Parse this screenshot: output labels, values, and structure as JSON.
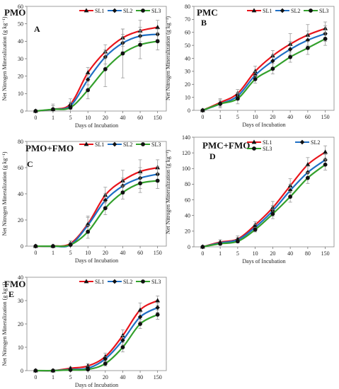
{
  "colors": {
    "SL1": "#e8141b",
    "SL2": "#1f6fc4",
    "SL3": "#33a02c",
    "error_bar": "#9a9a9a",
    "axis": "#555555"
  },
  "chart_data": [
    {
      "type": "line",
      "title": "PMO",
      "letter": "A",
      "xlabel": "Days of Incubation",
      "ylabel": "Net Nitrogen Mineralization (g kg⁻¹)",
      "categories": [
        "0",
        "1",
        "5",
        "10",
        "20",
        "40",
        "60",
        "150"
      ],
      "ylim": [
        0,
        60
      ],
      "yticks": [
        0,
        10,
        20,
        30,
        40,
        50,
        60
      ],
      "legend": "top-right",
      "grid": false,
      "error_bars": true,
      "series": [
        {
          "name": "SL1",
          "values": [
            0,
            1,
            4,
            22,
            34,
            42,
            46,
            48
          ]
        },
        {
          "name": "SL2",
          "values": [
            0,
            1,
            3,
            18,
            31,
            39,
            43,
            44
          ]
        },
        {
          "name": "SL3",
          "values": [
            0,
            1,
            2,
            12,
            24,
            33,
            38,
            40
          ]
        }
      ]
    },
    {
      "type": "line",
      "title": "PMC",
      "letter": "B",
      "xlabel": "Days of Incubation",
      "ylabel": "Net Nitrogen Mineralization (g kg⁻¹)",
      "categories": [
        "0",
        "1",
        "5",
        "10",
        "20",
        "40",
        "60",
        "150"
      ],
      "ylim": [
        0,
        80
      ],
      "yticks": [
        0,
        10,
        20,
        30,
        40,
        50,
        60,
        70,
        80
      ],
      "legend": "top-right",
      "grid": false,
      "error_bars": true,
      "series": [
        {
          "name": "SL1",
          "values": [
            0,
            6,
            13,
            30,
            42,
            51,
            58,
            63
          ]
        },
        {
          "name": "SL2",
          "values": [
            0,
            5,
            11,
            27,
            38,
            47,
            54,
            59
          ]
        },
        {
          "name": "SL3",
          "values": [
            0,
            5,
            9,
            24,
            32,
            41,
            48,
            55
          ]
        }
      ]
    },
    {
      "type": "line",
      "title": "PMO+FMO",
      "letter": "C",
      "xlabel": "Days of Incubation",
      "ylabel": "Net Nitrogen Mineralization (g kg⁻¹)",
      "categories": [
        "0",
        "1",
        "5",
        "10",
        "20",
        "40",
        "60",
        "150"
      ],
      "ylim": [
        0,
        80
      ],
      "yticks": [
        0,
        20,
        40,
        60,
        80
      ],
      "legend": "top-right",
      "grid": false,
      "error_bars": true,
      "series": [
        {
          "name": "SL1",
          "values": [
            0,
            0,
            2,
            17,
            39,
            50,
            57,
            60
          ]
        },
        {
          "name": "SL2",
          "values": [
            0,
            0,
            1,
            16,
            35,
            46,
            52,
            55
          ]
        },
        {
          "name": "SL3",
          "values": [
            0,
            0,
            1,
            11,
            29,
            41,
            48,
            50
          ]
        }
      ]
    },
    {
      "type": "line",
      "title": "PMC+FMO",
      "letter": "D",
      "xlabel": "Days of Incubation",
      "ylabel": "Net Nitrogen Mineralization (g kg⁻¹)",
      "categories": [
        "0",
        "1",
        "5",
        "10",
        "20",
        "40",
        "80",
        "150"
      ],
      "ylim": [
        0,
        140
      ],
      "yticks": [
        0,
        20,
        40,
        60,
        80,
        100,
        120,
        140
      ],
      "legend": "top-right",
      "grid": false,
      "error_bars": true,
      "series": [
        {
          "name": "SL1",
          "values": [
            0,
            6,
            10,
            28,
            50,
            78,
            105,
            121
          ]
        },
        {
          "name": "SL2",
          "values": [
            0,
            5,
            9,
            25,
            46,
            72,
            95,
            111
          ]
        },
        {
          "name": "SL3",
          "values": [
            0,
            4,
            7,
            22,
            42,
            64,
            88,
            105
          ]
        }
      ]
    },
    {
      "type": "line",
      "title": "FMO",
      "letter": "E",
      "xlabel": "Days of Incubation",
      "ylabel": "Net Nitrogen Mineralization (g kg⁻¹)",
      "categories": [
        "0",
        "1",
        "5",
        "10",
        "20",
        "40",
        "80",
        "150"
      ],
      "ylim": [
        0,
        40
      ],
      "yticks": [
        0,
        10,
        20,
        30,
        40
      ],
      "legend": "top-right",
      "grid": false,
      "error_bars": true,
      "series": [
        {
          "name": "SL1",
          "values": [
            0,
            0,
            1,
            2,
            6,
            15,
            26,
            30
          ]
        },
        {
          "name": "SL2",
          "values": [
            0,
            0,
            0.5,
            1,
            5,
            13,
            23,
            27
          ]
        },
        {
          "name": "SL3",
          "values": [
            0,
            0,
            0.3,
            0.5,
            3,
            10,
            20,
            24
          ]
        }
      ]
    }
  ]
}
